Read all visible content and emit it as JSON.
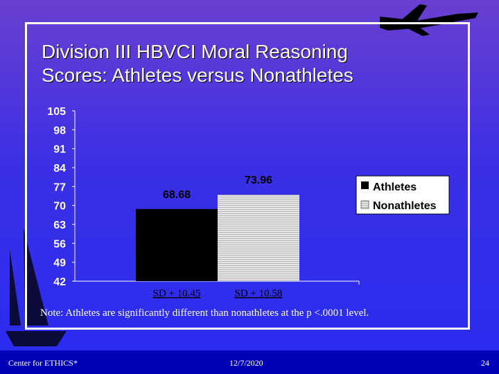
{
  "slide": {
    "title_line1": "Division III HBVCI Moral Reasoning",
    "title_line2": "Scores:  Athletes versus Nonathletes",
    "note": "Note:  Athletes are significantly different than nonathletes at the p <.0001 level."
  },
  "footer": {
    "left": "Center for ETHICS*",
    "center": "12/7/2020",
    "right": "24"
  },
  "colors": {
    "athletes": "#000000",
    "nonathletes": "#d9d9d9",
    "axis": "#ffffff"
  },
  "chart_data": {
    "type": "bar",
    "categories": [
      "",
      ""
    ],
    "series": [
      {
        "name": "Athletes",
        "values": [
          68.68,
          null
        ]
      },
      {
        "name": "Nonathletes",
        "values": [
          null,
          73.96
        ]
      }
    ],
    "data_labels": [
      "68.68",
      "73.96"
    ],
    "category_labels": [
      "SD + 10.45",
      "SD + 10.58"
    ],
    "ylim": [
      42,
      105
    ],
    "yticks": [
      42,
      49,
      56,
      63,
      70,
      77,
      84,
      91,
      98,
      105
    ],
    "legend": [
      "Athletes",
      "Nonathletes"
    ],
    "legend_position": "right",
    "grid": false
  }
}
